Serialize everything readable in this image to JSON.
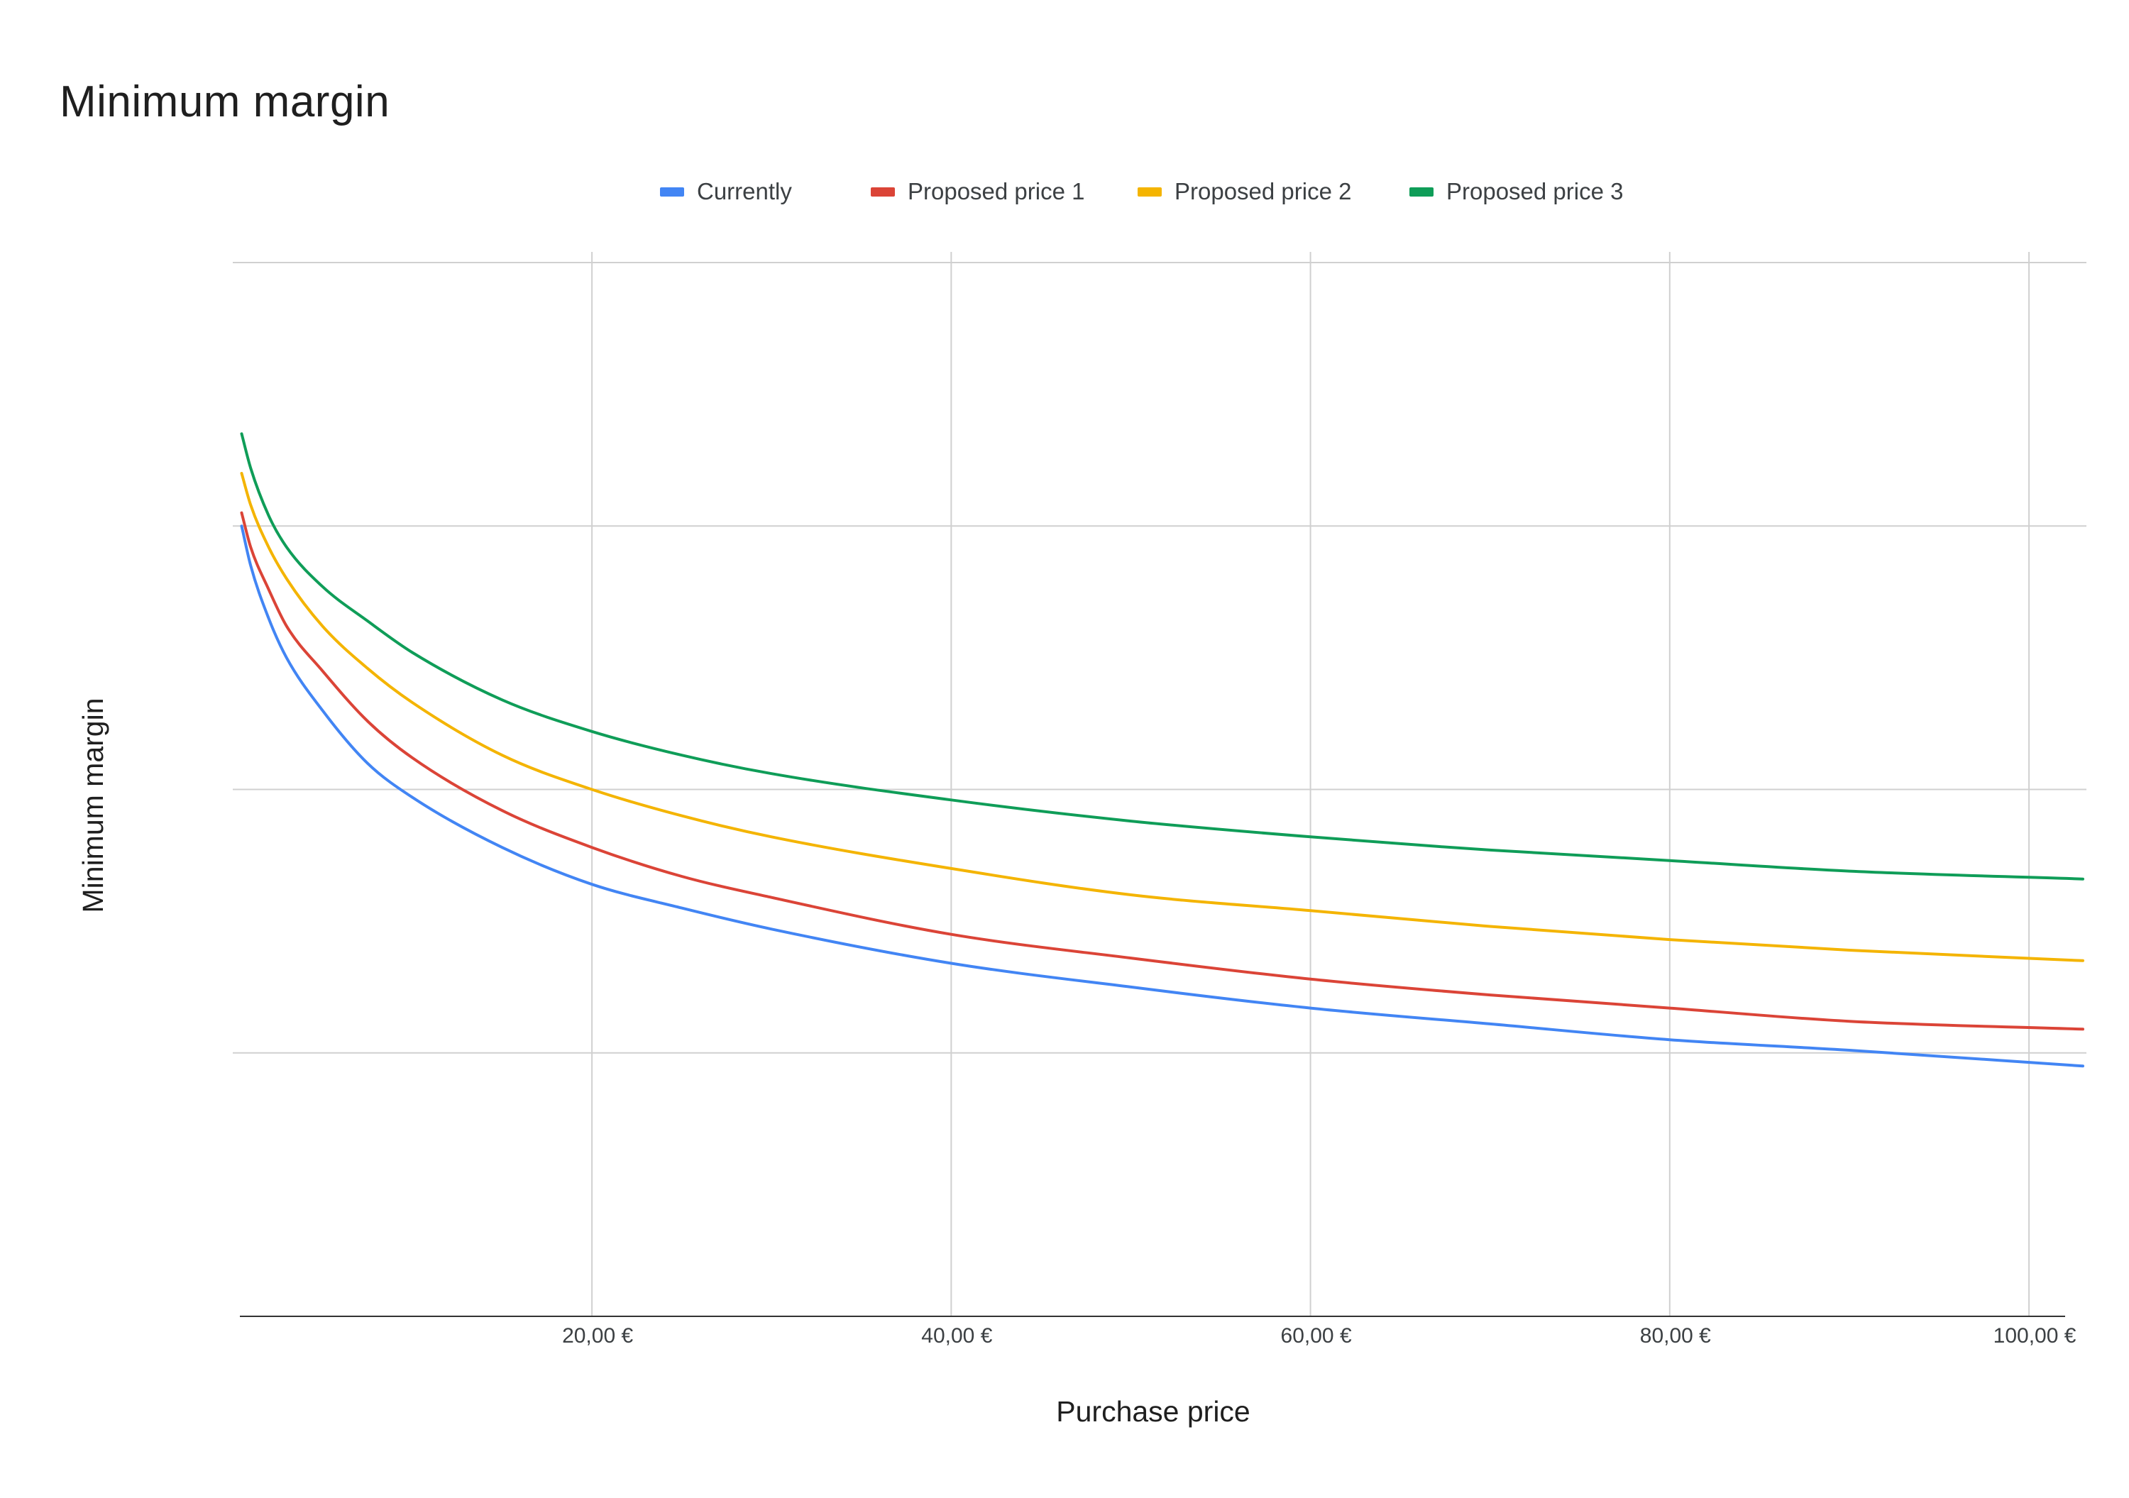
{
  "chart_data": {
    "type": "line",
    "title": "Minimum margin",
    "xlabel": "Purchase price",
    "ylabel": "Minimum margin",
    "x_tick_labels": [
      "20,00 €",
      "40,00 €",
      "60,00 €",
      "80,00 €",
      "100,00 €"
    ],
    "x_ticks": [
      20,
      40,
      60,
      80,
      100
    ],
    "xlim": [
      0.4,
      103
    ],
    "ylim": [
      0,
      4
    ],
    "y_gridlines": [
      1,
      2,
      3,
      4
    ],
    "y_tick_labels_shown": false,
    "grid": true,
    "legend_position": "top",
    "x": [
      0.5,
      1,
      2,
      3,
      5,
      7.5,
      10,
      15,
      20,
      25,
      30,
      40,
      50,
      60,
      70,
      80,
      90,
      103
    ],
    "series": [
      {
        "name": "Currently",
        "color": "#4285F4",
        "values": [
          3.0,
          2.85,
          2.65,
          2.5,
          2.3,
          2.1,
          1.97,
          1.78,
          1.64,
          1.55,
          1.47,
          1.34,
          1.25,
          1.17,
          1.11,
          1.05,
          1.01,
          0.95
        ]
      },
      {
        "name": "Proposed price 1",
        "color": "#DB4437",
        "values": [
          3.05,
          2.92,
          2.76,
          2.62,
          2.45,
          2.26,
          2.12,
          1.92,
          1.78,
          1.67,
          1.59,
          1.45,
          1.36,
          1.28,
          1.22,
          1.17,
          1.12,
          1.09
        ]
      },
      {
        "name": "Proposed price 2",
        "color": "#F4B400",
        "values": [
          3.2,
          3.08,
          2.92,
          2.8,
          2.62,
          2.46,
          2.33,
          2.13,
          2.0,
          1.9,
          1.82,
          1.7,
          1.6,
          1.54,
          1.48,
          1.43,
          1.39,
          1.35
        ]
      },
      {
        "name": "Proposed price 3",
        "color": "#0F9D58",
        "values": [
          3.35,
          3.22,
          3.04,
          2.92,
          2.77,
          2.64,
          2.52,
          2.34,
          2.22,
          2.13,
          2.06,
          1.96,
          1.88,
          1.82,
          1.77,
          1.73,
          1.69,
          1.66
        ]
      }
    ]
  }
}
